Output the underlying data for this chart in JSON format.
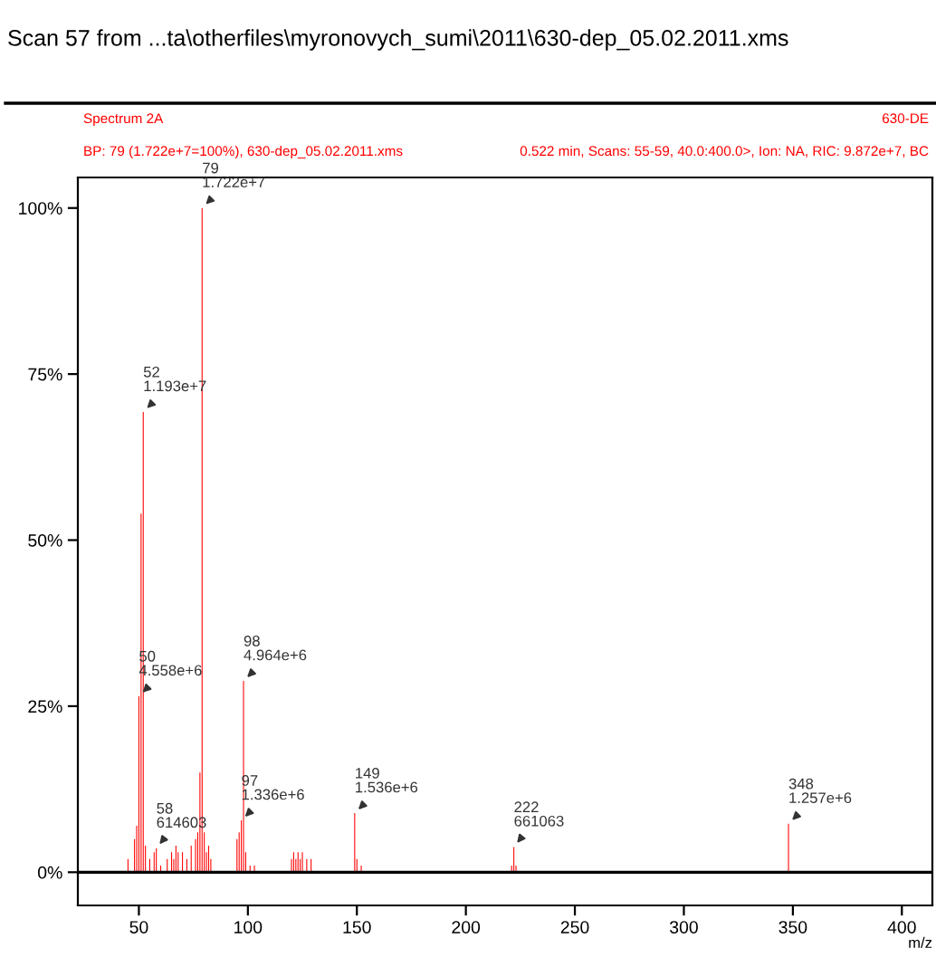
{
  "chart_data": {
    "type": "bar",
    "title": "Scan 57 from ...ta\\otherfiles\\myronovych_sumi\\2011\\630-dep_05.02.2011.xms",
    "subtitle": "Spectrum 2A",
    "xlabel": "m/z",
    "x": [
      45,
      48,
      49,
      50,
      51,
      52,
      53,
      55,
      57,
      58,
      60,
      63,
      65,
      66,
      67,
      68,
      70,
      72,
      74,
      76,
      77,
      78,
      79,
      80,
      81,
      82,
      83,
      95,
      96,
      97,
      98,
      99,
      101,
      103,
      120,
      121,
      122,
      123,
      124,
      125,
      127,
      129,
      149,
      150,
      152,
      221,
      222,
      223,
      348
    ],
    "values": [
      2,
      5,
      7,
      26.5,
      54,
      69.3,
      4,
      2,
      3,
      3.6,
      1,
      2,
      3,
      2,
      4,
      3,
      3,
      2,
      4,
      5,
      6,
      15,
      100,
      6,
      3,
      4,
      2,
      5,
      6,
      7.8,
      28.8,
      3,
      1,
      1,
      2,
      3,
      2,
      3,
      2,
      3,
      2,
      2,
      8.9,
      2,
      1,
      1,
      3.8,
      1,
      7.3
    ],
    "color": "#ff0000",
    "xlim": [
      22,
      414
    ],
    "ylim": [
      -5,
      104.6
    ],
    "xticks": [
      50,
      100,
      150,
      200,
      250,
      300,
      350,
      400
    ],
    "yticks": [
      {
        "value": 0,
        "label": "0%"
      },
      {
        "value": 25,
        "label": "25%"
      },
      {
        "value": 50,
        "label": "50%"
      },
      {
        "value": 75,
        "label": "75%"
      },
      {
        "value": 100,
        "label": "100%"
      }
    ],
    "ref_lines": [
      {
        "axis": "y",
        "value": 0,
        "color": "#000000"
      }
    ],
    "annotations": [
      "630-DE",
      "BP: 79 (1.722e+7=100%), 630-dep_05.02.2011.xms",
      "0.522 min, Scans: 55-59, 40.0:400.0>, Ion: NA, RIC: 9.872e+7, BC",
      {
        "text": "79\n1.722e+7",
        "x": 79,
        "y": 100
      },
      {
        "text": "52\n1.193e+7",
        "x": 52,
        "y": 69.3
      },
      {
        "text": "50\n4.558e+6",
        "x": 50,
        "y": 26.5
      },
      {
        "text": "98\n4.964e+6",
        "x": 98,
        "y": 28.8
      },
      {
        "text": "97\n1.336e+6",
        "x": 97,
        "y": 7.8
      },
      {
        "text": "58\n614603",
        "x": 58,
        "y": 3.6
      },
      {
        "text": "149\n1.536e+6",
        "x": 149,
        "y": 8.9
      },
      {
        "text": "222\n661063",
        "x": 222,
        "y": 3.8
      },
      {
        "text": "348\n1.257e+6",
        "x": 348,
        "y": 7.3
      }
    ],
    "grid": false,
    "legend": false
  }
}
